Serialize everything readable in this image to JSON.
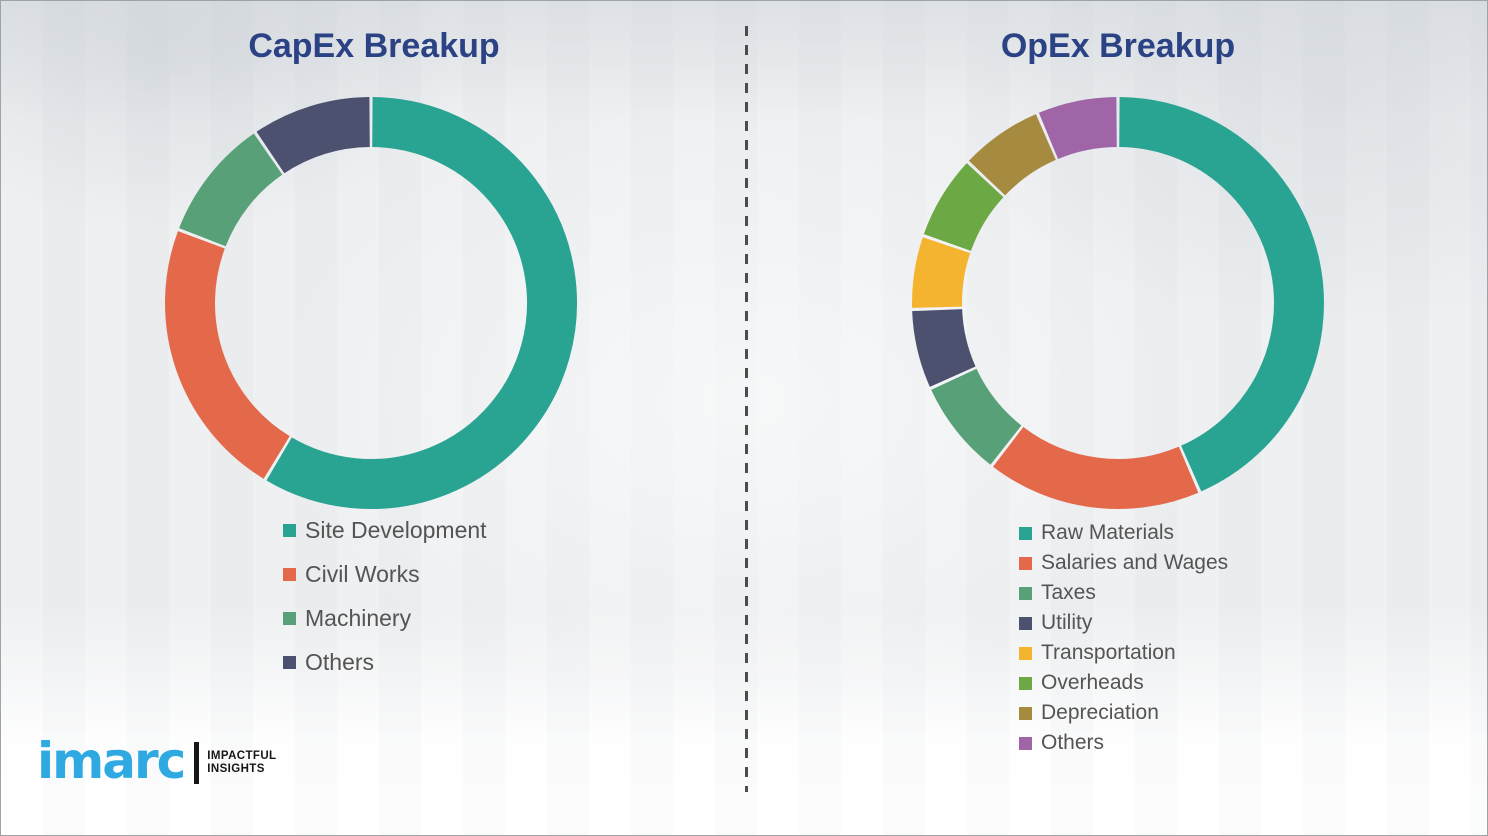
{
  "page": {
    "background": "#edeff1",
    "border_color": "#9ea3a8",
    "divider_color": "#4c4c4c",
    "legend_text_color": "#545454"
  },
  "logo": {
    "brand": "imarc",
    "brand_color": "#2fa9e1",
    "tagline_line1": "IMPACTFUL",
    "tagline_line2": "INSIGHTS"
  },
  "chart_data": [
    {
      "type": "pie",
      "variant": "donut",
      "title": "CapEx Breakup",
      "title_color": "#2b4385",
      "legend_position": "bottom-left",
      "start_angle_deg": 0,
      "direction": "clockwise",
      "categories": [
        "Site Development",
        "Civil Works",
        "Machinery",
        "Others"
      ],
      "values": [
        58.6,
        22.2,
        9.7,
        9.5
      ],
      "colors": [
        "#2aa492",
        "#e3694a",
        "#58a077",
        "#4b516f"
      ]
    },
    {
      "type": "pie",
      "variant": "donut",
      "title": "OpEx Breakup",
      "title_color": "#2b4385",
      "legend_position": "bottom-left",
      "start_angle_deg": 0,
      "direction": "clockwise",
      "categories": [
        "Raw Materials",
        "Salaries and Wages",
        "Taxes",
        "Utility",
        "Transportation",
        "Overheads",
        "Depreciation",
        "Others"
      ],
      "values": [
        43.5,
        17.0,
        7.7,
        6.3,
        5.8,
        6.7,
        6.6,
        6.4
      ],
      "colors": [
        "#2aa492",
        "#e3694a",
        "#58a077",
        "#4b516f",
        "#f5b42f",
        "#6ca843",
        "#a58a40",
        "#9f65a7"
      ]
    }
  ]
}
